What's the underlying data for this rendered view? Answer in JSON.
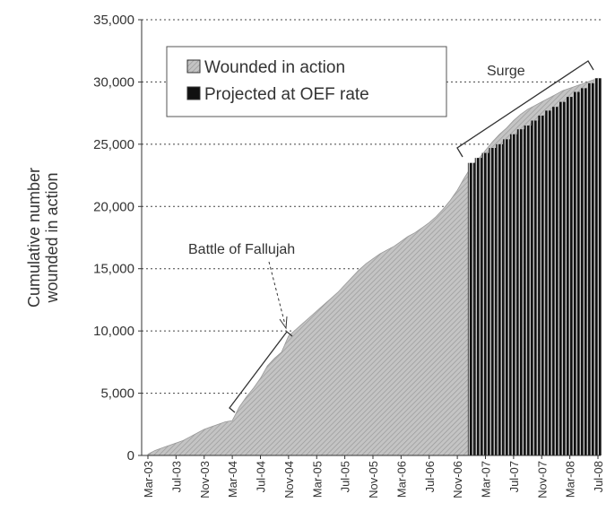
{
  "chart_data": {
    "type": "area",
    "y_label": [
      "Cumulative number",
      "wounded in action"
    ],
    "categories": [
      "Mar-03",
      null,
      null,
      null,
      "Jul-03",
      null,
      null,
      null,
      "Nov-03",
      null,
      null,
      null,
      "Mar-04",
      null,
      null,
      null,
      "Jul-04",
      null,
      null,
      null,
      "Nov-04",
      null,
      null,
      null,
      "Mar-05",
      null,
      null,
      null,
      "Jul-05",
      null,
      null,
      null,
      "Nov-05",
      null,
      null,
      null,
      "Mar-06",
      null,
      null,
      null,
      "Jul-06",
      null,
      null,
      null,
      "Nov-06",
      null,
      null,
      null,
      "Mar-07",
      null,
      null,
      null,
      "Jul-07",
      null,
      null,
      null,
      "Nov-07",
      null,
      null,
      null,
      "Mar-08",
      null,
      null,
      null,
      "Jul-08"
    ],
    "series": [
      {
        "name": "Wounded in action",
        "type": "area",
        "color": "#b5b5b5",
        "values": [
          100,
          400,
          600,
          800,
          1000,
          1200,
          1500,
          1800,
          2100,
          2300,
          2500,
          2700,
          2800,
          3900,
          4700,
          5400,
          6200,
          7200,
          7800,
          8300,
          9600,
          10100,
          10600,
          11100,
          11600,
          12100,
          12600,
          13100,
          13700,
          14300,
          14900,
          15400,
          15800,
          16200,
          16500,
          16800,
          17200,
          17600,
          17900,
          18300,
          18700,
          19200,
          19800,
          20500,
          21300,
          22300,
          23200,
          23800,
          24500,
          25200,
          25800,
          26300,
          26900,
          27400,
          27800,
          28100,
          28400,
          28700,
          29000,
          29300,
          29500,
          29700,
          29900,
          30100,
          30300
        ]
      },
      {
        "name": "Projected at OEF rate",
        "type": "bar",
        "color": "#111111",
        "values": [
          null,
          null,
          null,
          null,
          null,
          null,
          null,
          null,
          null,
          null,
          null,
          null,
          null,
          null,
          null,
          null,
          null,
          null,
          null,
          null,
          null,
          null,
          null,
          null,
          null,
          null,
          null,
          null,
          null,
          null,
          null,
          null,
          null,
          null,
          null,
          null,
          null,
          null,
          null,
          null,
          null,
          null,
          null,
          null,
          null,
          null,
          23500,
          23900,
          24300,
          24700,
          25000,
          25400,
          25800,
          26200,
          26500,
          26900,
          27300,
          27700,
          28000,
          28400,
          28800,
          29200,
          29500,
          29900,
          30300
        ]
      }
    ],
    "ylim": [
      0,
      35000
    ],
    "yticks": [
      0,
      {
        "value": 5000,
        "label": "5,000"
      },
      {
        "value": 10000,
        "label": "10,000"
      },
      {
        "value": 15000,
        "label": "15,000"
      },
      {
        "value": 20000,
        "label": "20,000"
      },
      {
        "value": 25000,
        "label": "25,000"
      },
      {
        "value": 30000,
        "label": "30,000"
      },
      {
        "value": 35000,
        "label": "35,000"
      }
    ],
    "grid": true,
    "legend": "top-left",
    "annotations": [
      {
        "text": "Battle of Fallujah"
      },
      {
        "text": "Surge"
      }
    ]
  }
}
